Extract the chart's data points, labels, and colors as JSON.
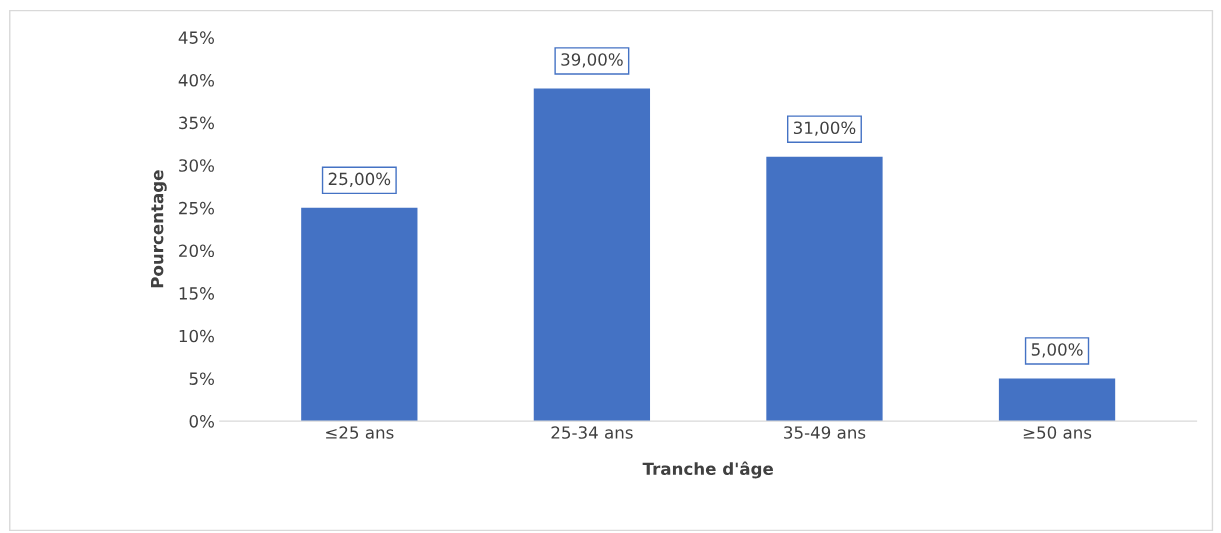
{
  "chart_data": {
    "type": "bar",
    "xlabel": "Tranche d'âge",
    "ylabel": "Pourcentage",
    "categories": [
      "≤25 ans",
      "25-34 ans",
      "35-49 ans",
      "≥50 ans"
    ],
    "values": [
      25,
      39,
      31,
      5
    ],
    "value_labels": [
      "25,00%",
      "39,00%",
      "31,00%",
      "5,00%"
    ],
    "color": "#4472c4",
    "ylim": [
      0,
      45
    ],
    "yticks": [
      {
        "value": 0,
        "label": "0%"
      },
      {
        "value": 5,
        "label": "5%"
      },
      {
        "value": 10,
        "label": "10%"
      },
      {
        "value": 15,
        "label": "15%"
      },
      {
        "value": 20,
        "label": "20%"
      },
      {
        "value": 25,
        "label": "25%"
      },
      {
        "value": 30,
        "label": "30%"
      },
      {
        "value": 35,
        "label": "35%"
      },
      {
        "value": 40,
        "label": "40%"
      },
      {
        "value": 45,
        "label": "45%"
      }
    ],
    "grid": false,
    "legend": false
  }
}
